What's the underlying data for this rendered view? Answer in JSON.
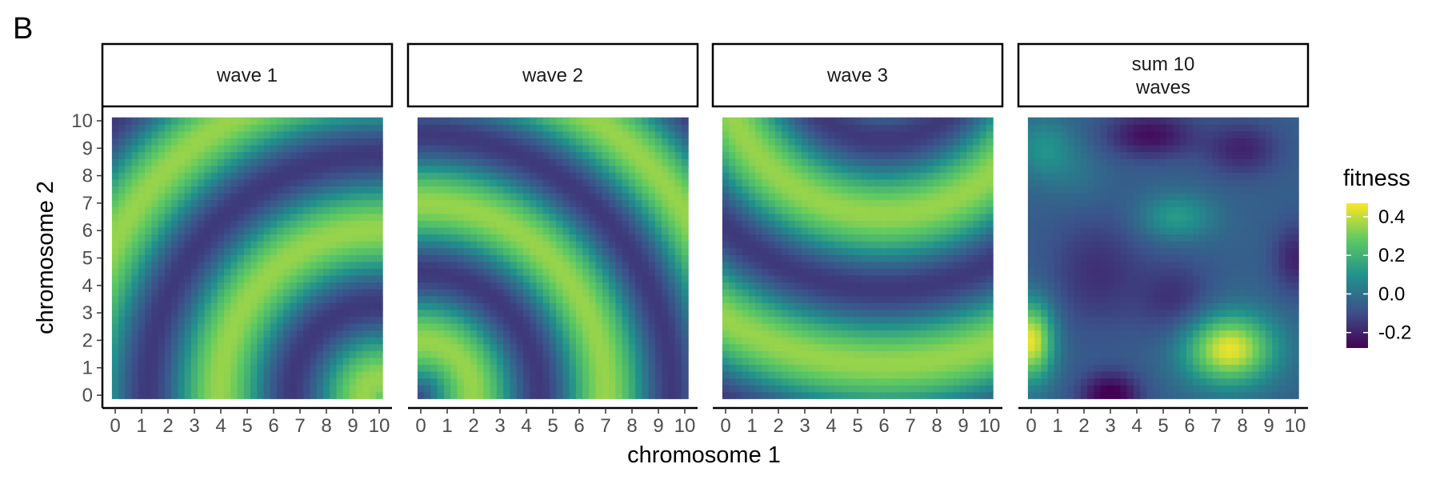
{
  "figure": {
    "panel_tag": "B",
    "xlabel": "chromosome 1",
    "ylabel": "chromosome 2",
    "legend_title": "fitness"
  },
  "chart_data": {
    "type": "heatmap",
    "facet_layout": "4 panels in one row, shared axes",
    "colormap": "viridis",
    "colorbar": {
      "title": "fitness",
      "range": [
        -0.28,
        0.47
      ],
      "ticks": [
        0.4,
        0.2,
        0.0,
        -0.2
      ],
      "tick_labels": [
        "0.4",
        "0.2",
        "0.0",
        "-0.2"
      ],
      "colors": [
        "#440154",
        "#3b528b",
        "#21918c",
        "#5ec962",
        "#fde725"
      ]
    },
    "x_ticks": [
      "0",
      "1",
      "2",
      "3",
      "4",
      "5",
      "6",
      "7",
      "8",
      "9",
      "10"
    ],
    "y_ticks": [
      "0",
      "1",
      "2",
      "3",
      "4",
      "5",
      "6",
      "7",
      "8",
      "9",
      "10"
    ],
    "xlim": [
      0,
      10
    ],
    "ylim": [
      0,
      10
    ],
    "grid_resolution": 41,
    "legend_position": "right",
    "panels": [
      {
        "title": "wave 1",
        "model": "concentric circular wave A + B*sin(k*r + phase)",
        "center": [
          10,
          0
        ],
        "k": 1.15,
        "phase": 0.9,
        "amplitude": 0.25,
        "offset": 0.1
      },
      {
        "title": "wave 2",
        "model": "concentric circular wave A + B*sin(k*r + phase)",
        "center": [
          0,
          0
        ],
        "k": 1.25,
        "phase": -0.9,
        "amplitude": 0.25,
        "offset": 0.1
      },
      {
        "title": "wave 3",
        "model": "concentric circular wave A + B*sin(k*r + phase)",
        "center": [
          6,
          13
        ],
        "k": 1.15,
        "phase": 0.5,
        "amplitude": 0.25,
        "offset": 0.1
      },
      {
        "title": "sum 10\nwaves",
        "model": "background plus gaussian bumps",
        "background": -0.05,
        "bumps": [
          {
            "center": [
              7.5,
              1.7
            ],
            "sd": [
              1.2,
              0.9
            ],
            "height": 0.5
          },
          {
            "center": [
              0,
              2.0
            ],
            "sd": [
              0.6,
              1.0
            ],
            "height": 0.5
          },
          {
            "center": [
              3.0,
              0.0
            ],
            "sd": [
              0.8,
              0.6
            ],
            "height": -0.25
          },
          {
            "center": [
              5.5,
              6.5
            ],
            "sd": [
              1.0,
              0.6
            ],
            "height": 0.18
          },
          {
            "center": [
              0.5,
              9.0
            ],
            "sd": [
              0.8,
              0.8
            ],
            "height": 0.15
          },
          {
            "center": [
              4.5,
              9.5
            ],
            "sd": [
              1.2,
              0.6
            ],
            "height": -0.2
          },
          {
            "center": [
              8.0,
              9.0
            ],
            "sd": [
              1.0,
              0.7
            ],
            "height": -0.15
          },
          {
            "center": [
              2.5,
              4.5
            ],
            "sd": [
              1.3,
              1.5
            ],
            "height": -0.12
          },
          {
            "center": [
              5.5,
              3.5
            ],
            "sd": [
              1.0,
              1.0
            ],
            "height": -0.12
          },
          {
            "center": [
              10,
              5.0
            ],
            "sd": [
              0.6,
              0.9
            ],
            "height": -0.15
          },
          {
            "center": [
              1.8,
              8.0
            ],
            "sd": [
              0.8,
              0.8
            ],
            "height": 0.05
          }
        ]
      }
    ]
  }
}
